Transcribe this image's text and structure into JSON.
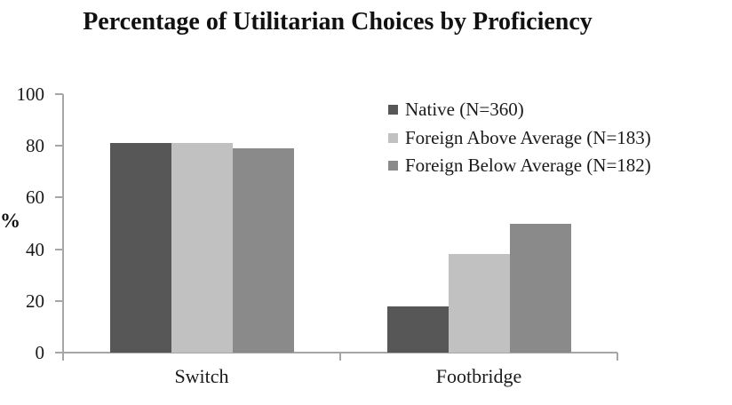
{
  "chart_data": {
    "type": "bar",
    "title": "Percentage of Utilitarian Choices by Proficiency",
    "ylabel": "%",
    "xlabel": "",
    "categories": [
      "Switch",
      "Footbridge"
    ],
    "series": [
      {
        "name": "Native (N=360)",
        "color": "#575757",
        "values": [
          81,
          18
        ]
      },
      {
        "name": "Foreign Above Average (N=183)",
        "color": "#c1c1c1",
        "values": [
          81,
          38
        ]
      },
      {
        "name": "Foreign Below Average (N=182)",
        "color": "#8a8a8a",
        "values": [
          79,
          50
        ]
      }
    ],
    "ylim": [
      0,
      100
    ],
    "yticks": [
      0,
      20,
      40,
      60,
      80,
      100
    ],
    "grid": false,
    "legend_position": "top-right",
    "axis_color": "#a6a6a6",
    "text_color": "#1a1a1a"
  }
}
